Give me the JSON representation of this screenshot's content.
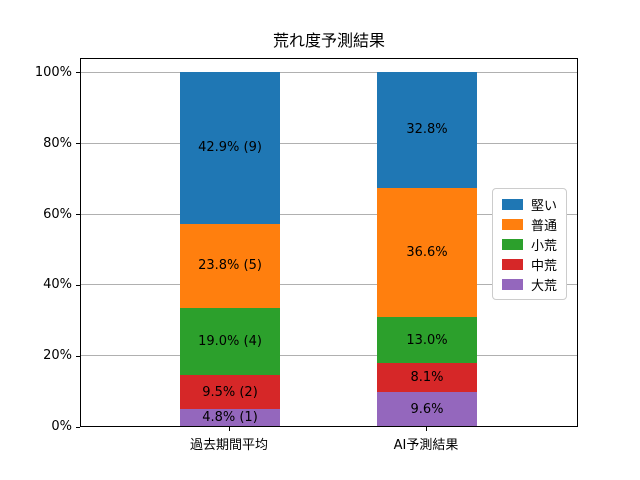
{
  "chart_data": {
    "type": "bar",
    "stacked": true,
    "title": "荒れ度予測結果",
    "categories": [
      "過去期間平均",
      "AI予測結果"
    ],
    "series": [
      {
        "name": "堅い",
        "color": "#1f77b4",
        "values": [
          42.9,
          32.8
        ],
        "labels": [
          "42.9% (9)",
          "32.8%"
        ]
      },
      {
        "name": "普通",
        "color": "#ff7f0e",
        "values": [
          23.8,
          36.6
        ],
        "labels": [
          "23.8% (5)",
          "36.6%"
        ]
      },
      {
        "name": "小荒",
        "color": "#2ca02c",
        "values": [
          19.0,
          13.0
        ],
        "labels": [
          "19.0% (4)",
          "13.0%"
        ]
      },
      {
        "name": "中荒",
        "color": "#d62728",
        "values": [
          9.5,
          8.1
        ],
        "labels": [
          "9.5% (2)",
          "8.1%"
        ]
      },
      {
        "name": "大荒",
        "color": "#9467bd",
        "values": [
          4.8,
          9.6
        ],
        "labels": [
          "4.8% (1)",
          "9.6%"
        ]
      }
    ],
    "stack_order_bottom_to_top": [
      "大荒",
      "中荒",
      "小荒",
      "普通",
      "堅い"
    ],
    "y_ticks": [
      "0%",
      "20%",
      "40%",
      "60%",
      "80%",
      "100%"
    ],
    "ylim": [
      0,
      104.2
    ],
    "grid": true,
    "grid_color": "#b0b0b0",
    "legend_position": "center right",
    "axis_color": "#000000",
    "label_color": "#000000"
  }
}
